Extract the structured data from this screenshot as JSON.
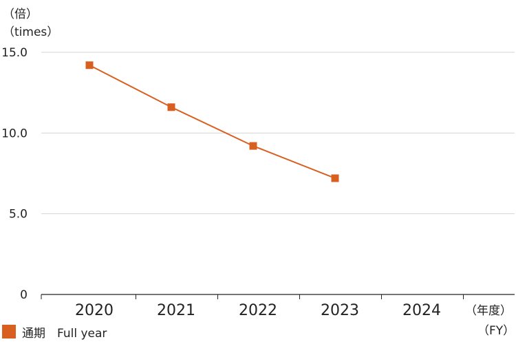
{
  "chart_data": {
    "type": "line",
    "y_unit_label_line1": "（倍）",
    "y_unit_label_line2": "（times）",
    "x_unit_label_line1": "（年度）",
    "x_unit_label_line2": "（FY）",
    "categories": [
      "2020",
      "2021",
      "2022",
      "2023",
      "2024"
    ],
    "y_ticks": [
      {
        "value": 15.0,
        "label": "15.0"
      },
      {
        "value": 10.0,
        "label": "10.0"
      },
      {
        "value": 5.0,
        "label": "5.0"
      },
      {
        "value": 0,
        "label": "0"
      }
    ],
    "ylim": [
      0,
      15
    ],
    "grid": true,
    "legend_position": "bottom-left",
    "series": [
      {
        "name": "通期　Full year",
        "color": "#d95f20",
        "values": [
          14.2,
          11.6,
          9.2,
          7.2,
          null
        ]
      }
    ]
  }
}
